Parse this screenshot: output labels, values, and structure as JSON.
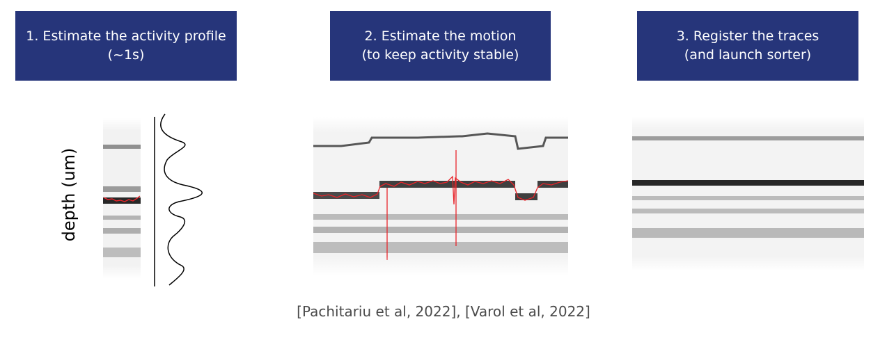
{
  "steps": [
    {
      "line1": "1. Estimate the activity profile",
      "line2": "(~1s)"
    },
    {
      "line1": "2. Estimate the motion",
      "line2": "(to keep activity stable)"
    },
    {
      "line1": "3. Register the traces",
      "line2": "(and launch sorter)"
    }
  ],
  "ylabel": "depth (um)",
  "citation": "[Pachitariu et al, 2022], [Varol et al, 2022]",
  "colors": {
    "box_background": "#26357a",
    "box_text": "#ffffff",
    "motion_trace": "#e8242a",
    "citation_text": "#4a4a4a"
  }
}
